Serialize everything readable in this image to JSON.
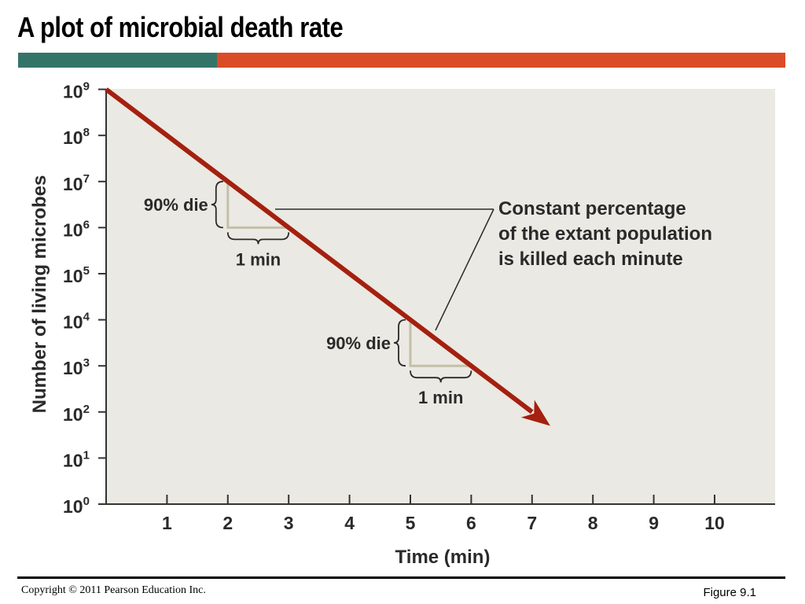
{
  "slide": {
    "title": "A plot of microbial death rate",
    "copyright": "Copyright © 2011 Pearson Education Inc.",
    "figure_label": "Figure 9.1"
  },
  "colors": {
    "bar_teal": "#347468",
    "bar_orange": "#dc4b28",
    "plot_bg": "#ebe9e3",
    "line": "#a4200f",
    "bracket": "#c2c0a8",
    "text": "#2a2a2a"
  },
  "chart_data": {
    "type": "line",
    "title": "",
    "xlabel": "Time (min)",
    "ylabel": "Number of living microbes",
    "x_ticks": [
      "1",
      "2",
      "3",
      "4",
      "5",
      "6",
      "7",
      "8",
      "9",
      "10"
    ],
    "y_ticks": [
      {
        "base": "10",
        "exp": "0"
      },
      {
        "base": "10",
        "exp": "1"
      },
      {
        "base": "10",
        "exp": "2"
      },
      {
        "base": "10",
        "exp": "3"
      },
      {
        "base": "10",
        "exp": "4"
      },
      {
        "base": "10",
        "exp": "5"
      },
      {
        "base": "10",
        "exp": "6"
      },
      {
        "base": "10",
        "exp": "7"
      },
      {
        "base": "10",
        "exp": "8"
      },
      {
        "base": "10",
        "exp": "9"
      }
    ],
    "xlim": [
      0,
      11
    ],
    "ylim_log10": [
      0,
      9
    ],
    "y_scale": "log",
    "grid": false,
    "series": [
      {
        "x": [
          0,
          1,
          2,
          3,
          4,
          5,
          6,
          7,
          7.3
        ],
        "y": [
          1000000000,
          100000000,
          10000000,
          1000000,
          100000,
          10000,
          1000,
          100,
          50
        ]
      }
    ],
    "annotations": {
      "die_label": "90% die",
      "min_label": "1 min",
      "brackets": [
        {
          "x_start": 2,
          "x_end": 3,
          "y_top": 10000000,
          "y_bottom": 1000000
        },
        {
          "x_start": 5,
          "x_end": 6,
          "y_top": 10000,
          "y_bottom": 1000
        }
      ],
      "callout_lines": [
        "Constant percentage",
        "of the extant population",
        "is killed each minute"
      ]
    }
  }
}
